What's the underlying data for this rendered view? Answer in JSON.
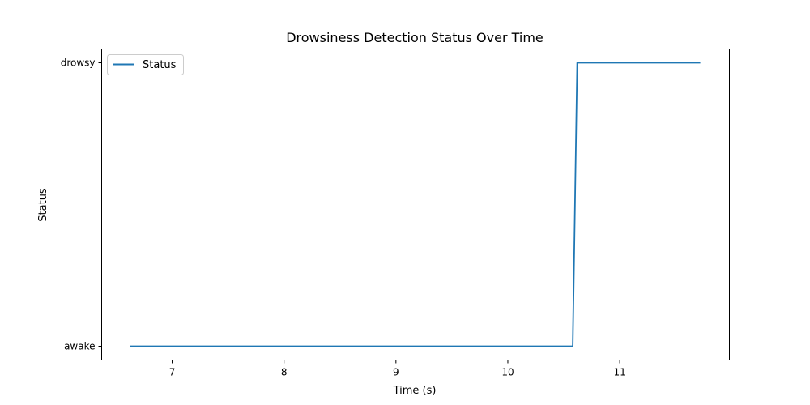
{
  "chart_data": {
    "type": "line",
    "title": "Drowsiness Detection Status Over Time",
    "xlabel": "Time (s)",
    "ylabel": "Status",
    "xlim": [
      6.37,
      11.98
    ],
    "x_ticks": [
      7,
      8,
      9,
      10,
      11
    ],
    "y_categories": [
      "awake",
      "drowsy"
    ],
    "grid": false,
    "legend_position": "top-left",
    "series": [
      {
        "name": "Status",
        "color": "#1f77b4",
        "x": [
          6.62,
          10.58,
          10.62,
          11.72
        ],
        "y": [
          "awake",
          "awake",
          "drowsy",
          "drowsy"
        ]
      }
    ]
  }
}
